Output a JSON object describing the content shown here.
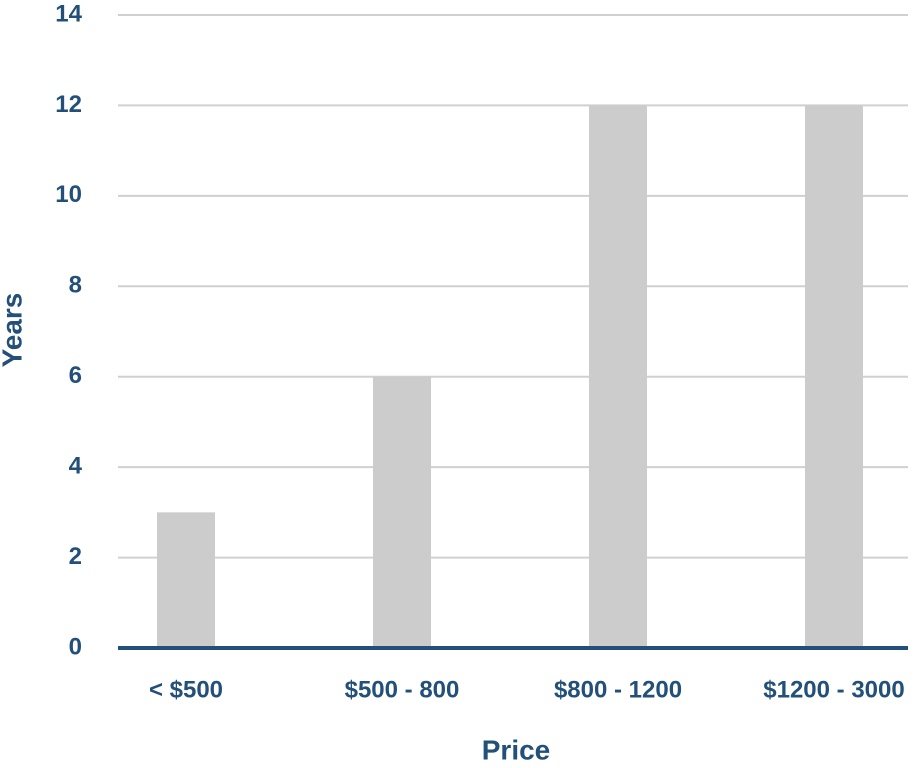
{
  "chart_data": {
    "type": "bar",
    "x_label": "Price",
    "y_label": "Years",
    "categories": [
      "< $500",
      "$500 - 800",
      "$800 - 1200",
      "$1200 - 3000"
    ],
    "values": [
      3,
      6,
      12,
      12
    ],
    "color": "#cccccc",
    "ylim": [
      0,
      14
    ],
    "yticks": [
      0,
      2,
      4,
      6,
      8,
      10,
      12,
      14
    ],
    "grid": true
  }
}
